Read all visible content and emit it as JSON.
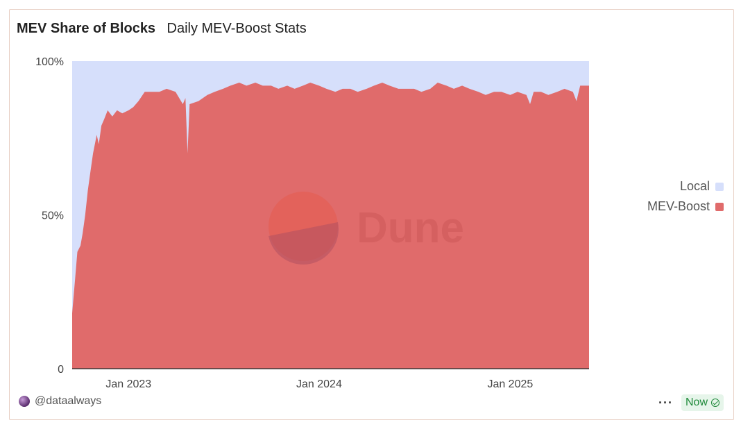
{
  "header": {
    "title": "MEV Share of Blocks",
    "subtitle": "Daily MEV-Boost Stats"
  },
  "colors": {
    "local": "#d6dffb",
    "mev_boost": "#e06b6b",
    "axis": "#222222"
  },
  "watermark": {
    "text": "Dune",
    "icon": "dune-logo-icon"
  },
  "footer": {
    "author": "@dataalways",
    "avatar_icon": "avatar-icon",
    "more_icon": "more-dots-icon",
    "status": "Now",
    "status_icon": "check-circle-icon"
  },
  "chart_data": {
    "type": "area",
    "stacked": true,
    "percent_stacked": true,
    "xlabel": "",
    "ylabel": "",
    "x_range": [
      "2022-09-15",
      "2025-06-01"
    ],
    "ylim": [
      0,
      100
    ],
    "x_ticks": [
      {
        "date": "2023-01-01",
        "label": "Jan 2023"
      },
      {
        "date": "2024-01-01",
        "label": "Jan 2024"
      },
      {
        "date": "2025-01-01",
        "label": "Jan 2025"
      }
    ],
    "y_ticks": [
      {
        "value": 0,
        "label": "0"
      },
      {
        "value": 50,
        "label": "50%"
      },
      {
        "value": 100,
        "label": "100%"
      }
    ],
    "legend": {
      "position": "right",
      "entries": [
        "Local",
        "MEV-Boost"
      ]
    },
    "series": [
      {
        "name": "Local",
        "color": "#d6dffb",
        "note": "remainder to 100%"
      },
      {
        "name": "MEV-Boost",
        "color": "#e06b6b",
        "points": [
          [
            "2022-09-15",
            18
          ],
          [
            "2022-09-20",
            28
          ],
          [
            "2022-09-25",
            38
          ],
          [
            "2022-10-01",
            40
          ],
          [
            "2022-10-05",
            44
          ],
          [
            "2022-10-10",
            50
          ],
          [
            "2022-10-15",
            58
          ],
          [
            "2022-10-20",
            64
          ],
          [
            "2022-10-25",
            70
          ],
          [
            "2022-11-01",
            76
          ],
          [
            "2022-11-05",
            73
          ],
          [
            "2022-11-10",
            79
          ],
          [
            "2022-11-15",
            81
          ],
          [
            "2022-11-22",
            84
          ],
          [
            "2022-12-01",
            82
          ],
          [
            "2022-12-10",
            84
          ],
          [
            "2022-12-20",
            83
          ],
          [
            "2023-01-01",
            84
          ],
          [
            "2023-01-10",
            85
          ],
          [
            "2023-01-20",
            87
          ],
          [
            "2023-02-01",
            90
          ],
          [
            "2023-02-15",
            90
          ],
          [
            "2023-03-01",
            90
          ],
          [
            "2023-03-15",
            91
          ],
          [
            "2023-04-01",
            90
          ],
          [
            "2023-04-15",
            86
          ],
          [
            "2023-04-20",
            88
          ],
          [
            "2023-04-24",
            70
          ],
          [
            "2023-04-28",
            86
          ],
          [
            "2023-05-15",
            87
          ],
          [
            "2023-06-01",
            89
          ],
          [
            "2023-06-15",
            90
          ],
          [
            "2023-07-01",
            91
          ],
          [
            "2023-07-15",
            92
          ],
          [
            "2023-08-01",
            93
          ],
          [
            "2023-08-15",
            92
          ],
          [
            "2023-09-01",
            93
          ],
          [
            "2023-09-15",
            92
          ],
          [
            "2023-10-01",
            92
          ],
          [
            "2023-10-15",
            91
          ],
          [
            "2023-11-01",
            92
          ],
          [
            "2023-11-15",
            91
          ],
          [
            "2023-12-01",
            92
          ],
          [
            "2023-12-15",
            93
          ],
          [
            "2024-01-01",
            92
          ],
          [
            "2024-01-15",
            91
          ],
          [
            "2024-02-01",
            90
          ],
          [
            "2024-02-15",
            91
          ],
          [
            "2024-03-01",
            91
          ],
          [
            "2024-03-15",
            90
          ],
          [
            "2024-04-01",
            91
          ],
          [
            "2024-04-15",
            92
          ],
          [
            "2024-05-01",
            93
          ],
          [
            "2024-05-15",
            92
          ],
          [
            "2024-06-01",
            91
          ],
          [
            "2024-06-15",
            91
          ],
          [
            "2024-07-01",
            91
          ],
          [
            "2024-07-15",
            90
          ],
          [
            "2024-08-01",
            91
          ],
          [
            "2024-08-15",
            93
          ],
          [
            "2024-09-01",
            92
          ],
          [
            "2024-09-15",
            91
          ],
          [
            "2024-10-01",
            92
          ],
          [
            "2024-10-15",
            91
          ],
          [
            "2024-11-01",
            90
          ],
          [
            "2024-11-15",
            89
          ],
          [
            "2024-12-01",
            90
          ],
          [
            "2024-12-15",
            90
          ],
          [
            "2025-01-01",
            89
          ],
          [
            "2025-01-15",
            90
          ],
          [
            "2025-02-01",
            89
          ],
          [
            "2025-02-08",
            86
          ],
          [
            "2025-02-15",
            90
          ],
          [
            "2025-03-01",
            90
          ],
          [
            "2025-03-15",
            89
          ],
          [
            "2025-04-01",
            90
          ],
          [
            "2025-04-15",
            91
          ],
          [
            "2025-05-01",
            90
          ],
          [
            "2025-05-08",
            87
          ],
          [
            "2025-05-15",
            92
          ],
          [
            "2025-05-25",
            92
          ],
          [
            "2025-06-01",
            92
          ]
        ]
      }
    ]
  }
}
